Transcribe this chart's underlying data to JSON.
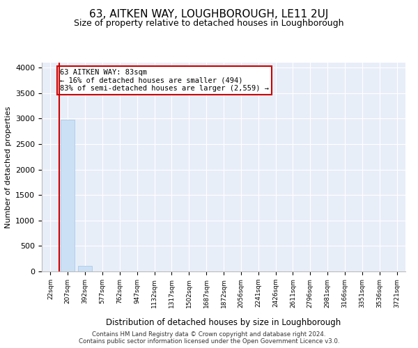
{
  "title": "63, AITKEN WAY, LOUGHBOROUGH, LE11 2UJ",
  "subtitle": "Size of property relative to detached houses in Loughborough",
  "xlabel": "Distribution of detached houses by size in Loughborough",
  "ylabel": "Number of detached properties",
  "bar_color": "#cce0f5",
  "bar_edge_color": "#a0c4e8",
  "bg_color": "#e8eef8",
  "annotation_text": "63 AITKEN WAY: 83sqm\n← 16% of detached houses are smaller (494)\n83% of semi-detached houses are larger (2,559) →",
  "annotation_box_color": "#cc0000",
  "categories": [
    "22sqm",
    "207sqm",
    "392sqm",
    "577sqm",
    "762sqm",
    "947sqm",
    "1132sqm",
    "1317sqm",
    "1502sqm",
    "1687sqm",
    "1872sqm",
    "2056sqm",
    "2241sqm",
    "2426sqm",
    "2611sqm",
    "2796sqm",
    "2981sqm",
    "3166sqm",
    "3351sqm",
    "3536sqm",
    "3721sqm"
  ],
  "values": [
    0,
    2980,
    110,
    0,
    0,
    0,
    0,
    0,
    0,
    0,
    0,
    0,
    0,
    0,
    0,
    0,
    0,
    0,
    0,
    0,
    0
  ],
  "ylim": [
    0,
    4100
  ],
  "yticks": [
    0,
    500,
    1000,
    1500,
    2000,
    2500,
    3000,
    3500,
    4000
  ],
  "vline_x": 0.5,
  "footer_line1": "Contains HM Land Registry data © Crown copyright and database right 2024.",
  "footer_line2": "Contains public sector information licensed under the Open Government Licence v3.0."
}
